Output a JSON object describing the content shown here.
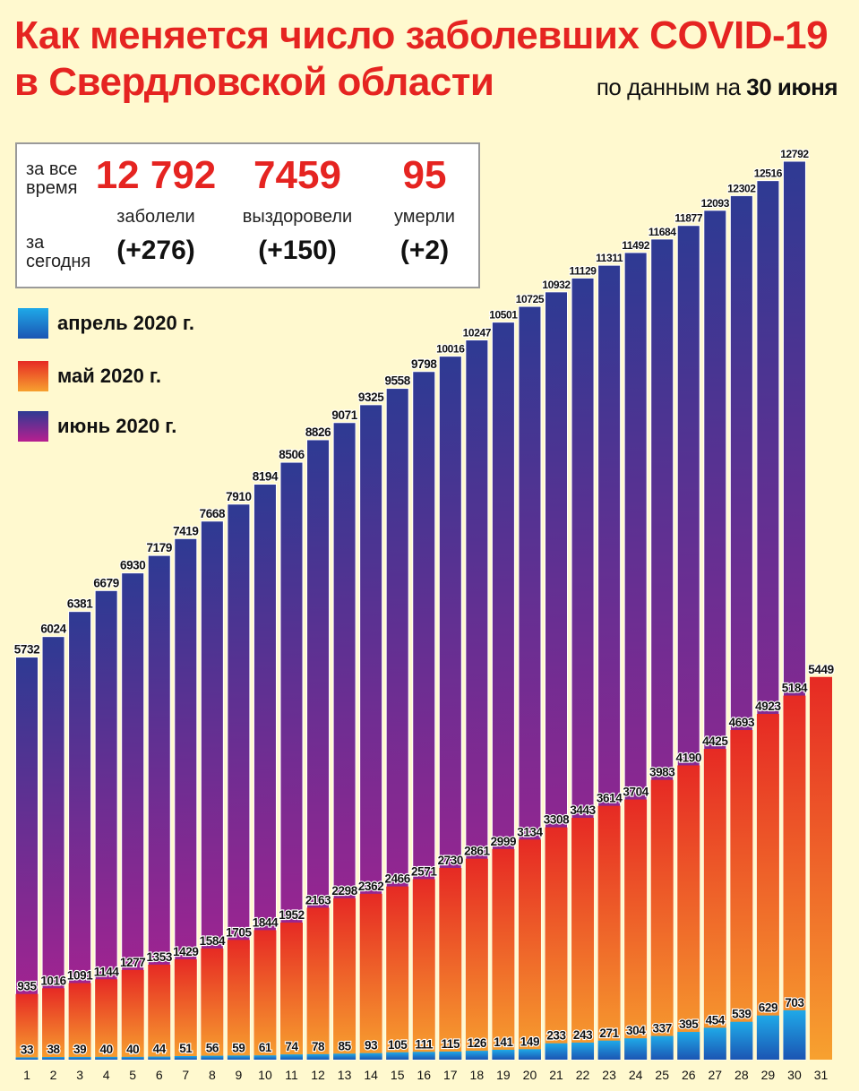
{
  "header": {
    "title_line1": "Как  меняется число  заболевших COVID-19",
    "title_line2": "в Свердловской области",
    "asof_prefix": "по данным на ",
    "asof_date": "30 июня"
  },
  "stats": {
    "all_time_label_1": "за все",
    "all_time_label_2": "время",
    "today_label_1": "за",
    "today_label_2": "сегодня",
    "cases_total": "12 792",
    "cases_caption": "заболели",
    "cases_today": "(+276)",
    "recovered_total": "7459",
    "recovered_caption": "выздоровели",
    "recovered_today": "(+150)",
    "deaths_total": "95",
    "deaths_caption": "умерли",
    "deaths_today": "(+2)"
  },
  "colors": {
    "title_red": "#e52421",
    "april_top": "#1fa9e8",
    "april_bottom": "#1b55b3",
    "may_top": "#e62a24",
    "may_bottom": "#f7a12f",
    "june_top": "#2e3a93",
    "june_bottom": "#b81f90"
  },
  "chart_data": {
    "type": "bar",
    "categories": [
      "1",
      "2",
      "3",
      "4",
      "5",
      "6",
      "7",
      "8",
      "9",
      "10",
      "11",
      "12",
      "13",
      "14",
      "15",
      "16",
      "17",
      "18",
      "19",
      "20",
      "21",
      "22",
      "23",
      "24",
      "25",
      "26",
      "27",
      "28",
      "29",
      "30",
      "31"
    ],
    "series": [
      {
        "name": "апрель 2020 г.",
        "values": [
          33,
          38,
          39,
          40,
          40,
          44,
          51,
          56,
          59,
          61,
          74,
          78,
          85,
          93,
          105,
          111,
          115,
          126,
          141,
          149,
          233,
          243,
          271,
          304,
          337,
          395,
          454,
          539,
          629,
          703,
          null
        ]
      },
      {
        "name": "май 2020 г.",
        "values": [
          935,
          1016,
          1091,
          1144,
          1277,
          1353,
          1429,
          1584,
          1705,
          1844,
          1952,
          2163,
          2298,
          2362,
          2466,
          2571,
          2730,
          2861,
          2999,
          3134,
          3308,
          3443,
          3614,
          3704,
          3983,
          4190,
          4425,
          4693,
          4923,
          5184,
          5449
        ]
      },
      {
        "name": "июнь 2020 г.",
        "values": [
          5732,
          6024,
          6381,
          6679,
          6930,
          7179,
          7419,
          7668,
          7910,
          8194,
          8506,
          8826,
          9071,
          9325,
          9558,
          9798,
          10016,
          10247,
          10501,
          10725,
          10932,
          11129,
          11311,
          11492,
          11684,
          11877,
          12093,
          12302,
          12516,
          12792,
          null
        ]
      }
    ],
    "ylim": [
      0,
      12792
    ],
    "grid": false,
    "legend_position": "left"
  }
}
